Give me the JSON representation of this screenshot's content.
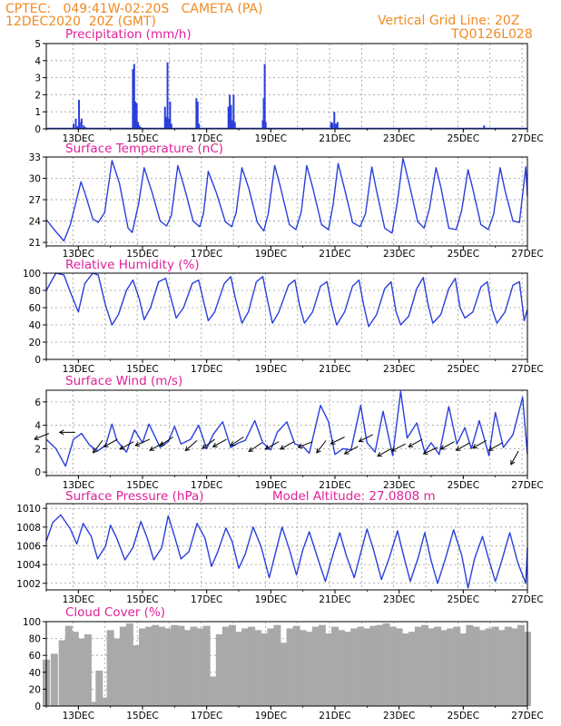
{
  "header": {
    "line1_left": "CPTEC:   049:41W-02:20S   CAMETA (PA)",
    "line2_left": "12DEC2020  20Z (GMT)",
    "line1_right": "Vertical Grid Line: 20Z",
    "line2_right": "TQ0126L028"
  },
  "colors": {
    "header": "#f08a24",
    "panel_title": "#e0209a",
    "series": "#2a3fdc",
    "cloud": "#a9a9a9",
    "wind_arrow": "#000000"
  },
  "x_axis_labels": [
    "13DEC",
    "15DEC",
    "17DEC",
    "19DEC",
    "21DEC",
    "23DEC",
    "25DEC",
    "27DEC"
  ],
  "chart_data": [
    {
      "type": "bar",
      "title": "Precipitation (mm/h)",
      "ylim": [
        0,
        5
      ],
      "yticks": [
        "0",
        "1",
        "2",
        "3",
        "4",
        "5"
      ],
      "x": [
        12.85,
        12.92,
        12.98,
        13.02,
        13.04,
        13.1,
        13.17,
        13.22,
        14.7,
        14.74,
        14.78,
        14.82,
        14.86,
        14.9,
        14.95,
        15.0,
        15.7,
        15.74,
        15.78,
        15.82,
        15.86,
        15.9,
        16.68,
        16.72,
        16.76,
        17.68,
        17.72,
        17.76,
        17.8,
        17.84,
        17.88,
        18.75,
        18.78,
        18.81,
        18.84,
        20.88,
        20.92,
        20.98,
        21.03,
        21.08,
        25.65,
        26.6
      ],
      "values": [
        0.3,
        0.6,
        0.15,
        1.7,
        0.4,
        0.6,
        0.2,
        0.1,
        3.5,
        3.8,
        1.6,
        1.5,
        0.4,
        0.2,
        0.1,
        0.05,
        1.3,
        0.7,
        3.9,
        0.6,
        1.6,
        0.3,
        1.8,
        1.6,
        0.3,
        1.3,
        2.0,
        1.4,
        0.5,
        2.0,
        0.4,
        0.5,
        1.8,
        3.8,
        0.4,
        0.4,
        0.35,
        1.0,
        0.3,
        0.4,
        0.2,
        0.05
      ]
    },
    {
      "type": "line",
      "title": "Surface Temperature (nC)",
      "ylim": [
        20.5,
        33
      ],
      "yticks": [
        "21",
        "24",
        "27",
        "30",
        "33"
      ],
      "x": [
        12.0,
        12.3,
        12.55,
        12.75,
        13.08,
        13.2,
        13.45,
        13.62,
        13.82,
        14.05,
        14.28,
        14.55,
        14.68,
        14.88,
        15.05,
        15.3,
        15.55,
        15.75,
        15.9,
        16.1,
        16.3,
        16.58,
        16.78,
        16.9,
        17.05,
        17.3,
        17.58,
        17.78,
        17.92,
        18.1,
        18.32,
        18.58,
        18.78,
        18.92,
        19.12,
        19.3,
        19.58,
        19.78,
        19.95,
        20.12,
        20.3,
        20.58,
        20.8,
        20.95,
        21.1,
        21.3,
        21.55,
        21.78,
        21.95,
        22.15,
        22.3,
        22.55,
        22.78,
        22.95,
        23.12,
        23.3,
        23.58,
        23.78,
        23.95,
        24.15,
        24.3,
        24.55,
        24.78,
        24.95,
        25.15,
        25.3,
        25.55,
        25.78,
        25.95,
        26.15,
        26.3,
        26.55,
        26.75,
        26.95,
        27.0
      ],
      "values": [
        24.2,
        22.5,
        21.2,
        23.5,
        29.5,
        28.0,
        24.3,
        23.8,
        25.2,
        32.5,
        29.3,
        23.0,
        22.4,
        26.5,
        31.5,
        28.0,
        24.0,
        23.3,
        24.8,
        31.8,
        28.8,
        24.0,
        23.2,
        25.0,
        31.0,
        28.0,
        23.9,
        23.2,
        25.2,
        31.5,
        28.5,
        23.8,
        22.6,
        25.0,
        31.8,
        28.8,
        23.5,
        22.8,
        25.3,
        31.8,
        28.8,
        23.5,
        22.8,
        26.5,
        32.1,
        28.5,
        23.8,
        23.2,
        25.0,
        31.6,
        28.2,
        23.0,
        22.3,
        26.8,
        32.8,
        29.5,
        23.9,
        23.0,
        25.8,
        31.5,
        28.8,
        23.0,
        22.8,
        25.5,
        31.2,
        28.5,
        23.5,
        22.8,
        25.0,
        31.5,
        28.3,
        24.0,
        23.8,
        31.6,
        27.5
      ]
    },
    {
      "type": "line",
      "title": "Relative Humidity (%)",
      "ylim": [
        0,
        100
      ],
      "yticks": [
        "0",
        "20",
        "40",
        "60",
        "80",
        "100"
      ],
      "x": [
        12.0,
        12.15,
        12.3,
        12.55,
        12.75,
        13.0,
        13.2,
        13.45,
        13.62,
        13.85,
        14.05,
        14.25,
        14.5,
        14.7,
        14.9,
        15.05,
        15.25,
        15.5,
        15.72,
        15.88,
        16.05,
        16.28,
        16.55,
        16.75,
        16.9,
        17.05,
        17.25,
        17.55,
        17.75,
        17.9,
        18.1,
        18.3,
        18.55,
        18.75,
        18.9,
        19.05,
        19.25,
        19.55,
        19.75,
        19.9,
        20.05,
        20.3,
        20.55,
        20.75,
        20.9,
        21.05,
        21.3,
        21.55,
        21.75,
        21.9,
        22.05,
        22.3,
        22.55,
        22.75,
        22.9,
        23.05,
        23.3,
        23.55,
        23.75,
        23.9,
        24.05,
        24.3,
        24.55,
        24.75,
        24.9,
        25.05,
        25.3,
        25.55,
        25.75,
        25.9,
        26.05,
        26.3,
        26.55,
        26.75,
        26.9,
        27.0
      ],
      "values": [
        80,
        90,
        100,
        98,
        78,
        55,
        88,
        100,
        98,
        62,
        40,
        52,
        80,
        92,
        70,
        46,
        60,
        90,
        94,
        72,
        48,
        60,
        88,
        92,
        68,
        45,
        55,
        88,
        96,
        70,
        42,
        55,
        90,
        96,
        68,
        42,
        55,
        86,
        92,
        62,
        42,
        55,
        85,
        90,
        62,
        40,
        55,
        85,
        92,
        62,
        38,
        52,
        82,
        90,
        56,
        40,
        50,
        82,
        95,
        64,
        42,
        52,
        82,
        94,
        60,
        48,
        55,
        84,
        90,
        58,
        42,
        55,
        86,
        90,
        45,
        58
      ]
    },
    {
      "type": "line",
      "title": "Surface Wind (m/s)",
      "ylim": [
        -0.3,
        7
      ],
      "yticks": [
        "0",
        "2",
        "4",
        "6"
      ],
      "x": [
        12.0,
        12.3,
        12.6,
        12.85,
        13.1,
        13.35,
        13.6,
        13.85,
        14.05,
        14.2,
        14.5,
        14.75,
        15.0,
        15.2,
        15.55,
        15.8,
        16.0,
        16.2,
        16.5,
        16.75,
        17.0,
        17.2,
        17.5,
        17.75,
        18.0,
        18.2,
        18.5,
        18.75,
        19.0,
        19.2,
        19.5,
        19.75,
        20.0,
        20.2,
        20.55,
        20.8,
        21.0,
        21.25,
        21.5,
        21.8,
        22.0,
        22.25,
        22.5,
        22.8,
        23.05,
        23.25,
        23.55,
        23.8,
        24.0,
        24.25,
        24.55,
        24.8,
        25.05,
        25.25,
        25.5,
        25.8,
        26.0,
        26.25,
        26.55,
        26.85,
        27.0
      ],
      "values": [
        2.8,
        2.0,
        0.5,
        2.8,
        3.3,
        2.3,
        1.8,
        2.3,
        4.1,
        2.7,
        1.7,
        3.6,
        2.5,
        4.1,
        2.1,
        2.6,
        3.9,
        2.4,
        2.8,
        4.0,
        2.0,
        3.2,
        4.3,
        2.1,
        2.5,
        2.7,
        4.4,
        2.5,
        1.9,
        3.4,
        4.3,
        2.4,
        2.2,
        1.6,
        5.7,
        4.3,
        1.5,
        2.0,
        1.9,
        5.7,
        2.5,
        1.7,
        5.2,
        1.4,
        6.9,
        2.9,
        4.2,
        1.7,
        2.5,
        1.5,
        5.6,
        2.4,
        3.8,
        2.0,
        4.4,
        1.4,
        5.1,
        2.1,
        3.2,
        6.4,
        1.5
      ]
    },
    {
      "type": "line",
      "title": "Surface Pressure (hPa)",
      "subtitle": "Model Altitude: 27.0808 m",
      "ylim": [
        1001.3,
        1010.5
      ],
      "yticks": [
        "1002",
        "1004",
        "1006",
        "1008",
        "1010"
      ],
      "x": [
        12.0,
        12.2,
        12.45,
        12.75,
        12.95,
        13.15,
        13.4,
        13.6,
        13.85,
        14.0,
        14.2,
        14.45,
        14.7,
        14.95,
        15.15,
        15.35,
        15.6,
        15.8,
        16.0,
        16.2,
        16.45,
        16.7,
        16.95,
        17.15,
        17.35,
        17.6,
        17.8,
        18.0,
        18.2,
        18.45,
        18.7,
        18.95,
        19.15,
        19.35,
        19.6,
        19.8,
        20.0,
        20.2,
        20.45,
        20.7,
        20.95,
        21.15,
        21.35,
        21.6,
        21.8,
        22.0,
        22.2,
        22.45,
        22.7,
        22.95,
        23.15,
        23.35,
        23.6,
        23.8,
        24.0,
        24.2,
        24.45,
        24.7,
        24.95,
        25.15,
        25.35,
        25.6,
        25.8,
        26.0,
        26.2,
        26.45,
        26.7,
        26.95,
        27.0
      ],
      "values": [
        1006.5,
        1008.5,
        1009.3,
        1007.8,
        1006.2,
        1008.4,
        1007.0,
        1004.6,
        1006.0,
        1008.2,
        1006.8,
        1004.5,
        1005.8,
        1008.6,
        1006.8,
        1004.5,
        1005.8,
        1009.2,
        1007.0,
        1004.6,
        1005.4,
        1008.4,
        1006.8,
        1003.8,
        1005.4,
        1007.9,
        1006.4,
        1003.6,
        1005.1,
        1008.0,
        1005.9,
        1002.6,
        1005.3,
        1008.0,
        1005.4,
        1002.9,
        1005.6,
        1007.5,
        1004.8,
        1002.2,
        1005.2,
        1007.4,
        1005.0,
        1002.6,
        1005.2,
        1007.8,
        1005.6,
        1002.4,
        1004.8,
        1007.6,
        1004.8,
        1002.2,
        1004.8,
        1007.4,
        1004.4,
        1002.0,
        1004.7,
        1007.7,
        1005.0,
        1001.5,
        1004.6,
        1007.0,
        1004.5,
        1002.2,
        1004.4,
        1007.4,
        1004.2,
        1002.0,
        1005.8
      ]
    },
    {
      "type": "bar",
      "title": "Cloud Cover (%)",
      "ylim": [
        0,
        100
      ],
      "yticks": [
        "0",
        "20",
        "40",
        "60",
        "80",
        "100"
      ],
      "x": [
        12.0,
        12.25,
        12.5,
        12.7,
        12.9,
        13.1,
        13.3,
        13.5,
        13.65,
        13.8,
        14.0,
        14.2,
        14.4,
        14.6,
        14.8,
        15.0,
        15.2,
        15.4,
        15.6,
        15.8,
        16.0,
        16.2,
        16.4,
        16.6,
        16.8,
        17.0,
        17.2,
        17.4,
        17.6,
        17.8,
        18.0,
        18.2,
        18.4,
        18.6,
        18.8,
        19.0,
        19.2,
        19.4,
        19.6,
        19.8,
        20.0,
        20.2,
        20.4,
        20.6,
        20.8,
        21.0,
        21.2,
        21.4,
        21.6,
        21.8,
        22.0,
        22.2,
        22.4,
        22.6,
        22.8,
        23.0,
        23.2,
        23.4,
        23.6,
        23.8,
        24.0,
        24.2,
        24.4,
        24.6,
        24.8,
        25.0,
        25.2,
        25.4,
        25.6,
        25.8,
        26.0,
        26.2,
        26.4,
        26.6,
        26.8,
        27.0
      ],
      "values": [
        55,
        62,
        78,
        95,
        88,
        80,
        85,
        5,
        42,
        10,
        90,
        80,
        94,
        98,
        72,
        92,
        94,
        96,
        94,
        92,
        96,
        95,
        90,
        94,
        92,
        95,
        35,
        85,
        94,
        96,
        88,
        92,
        94,
        90,
        86,
        92,
        96,
        75,
        92,
        95,
        90,
        88,
        94,
        96,
        86,
        94,
        90,
        88,
        92,
        94,
        92,
        95,
        96,
        98,
        94,
        92,
        86,
        88,
        94,
        96,
        92,
        94,
        90,
        92,
        94,
        86,
        96,
        94,
        90,
        92,
        94,
        90,
        94,
        92,
        96,
        88
      ]
    }
  ],
  "wind_arrows": {
    "x": [
      12.08,
      12.9,
      13.75,
      14.22,
      14.72,
      15.22,
      15.65,
      15.95,
      16.7,
      17.25,
      17.62,
      18.15,
      18.72,
      19.25,
      19.72,
      20.3,
      20.72,
      21.3,
      21.72,
      22.18,
      22.75,
      23.2,
      23.72,
      24.2,
      24.72,
      25.2,
      25.72,
      26.22,
      26.72
    ],
    "speed": [
      3.3,
      3.4,
      2.7,
      2.8,
      2.6,
      2.8,
      2.5,
      3.0,
      2.7,
      2.8,
      2.8,
      3.0,
      2.5,
      2.6,
      2.6,
      2.6,
      2.7,
      3.0,
      2.2,
      3.2,
      2.0,
      2.4,
      2.8,
      2.1,
      2.6,
      2.5,
      2.7,
      2.5,
      1.8
    ],
    "dx": [
      -1.0,
      -1.0,
      -0.6,
      -0.9,
      -0.9,
      -0.9,
      -0.9,
      -0.9,
      -0.8,
      -0.8,
      -0.9,
      -0.9,
      -0.9,
      -0.9,
      -0.9,
      -1.0,
      -0.6,
      -1.0,
      -0.9,
      -1.0,
      -0.9,
      -1.0,
      -0.9,
      -0.9,
      -0.9,
      -0.9,
      -0.9,
      -0.9,
      -0.5
    ],
    "dy": [
      -0.4,
      0.0,
      -0.8,
      -0.5,
      -0.5,
      -0.4,
      -0.5,
      -0.6,
      -0.7,
      -0.6,
      -0.5,
      -0.6,
      -0.6,
      -0.5,
      -0.5,
      -0.4,
      -0.8,
      -0.5,
      -0.5,
      -0.5,
      -0.5,
      -0.5,
      -0.5,
      -0.4,
      -0.5,
      -0.5,
      -0.5,
      -0.5,
      -0.9
    ]
  }
}
